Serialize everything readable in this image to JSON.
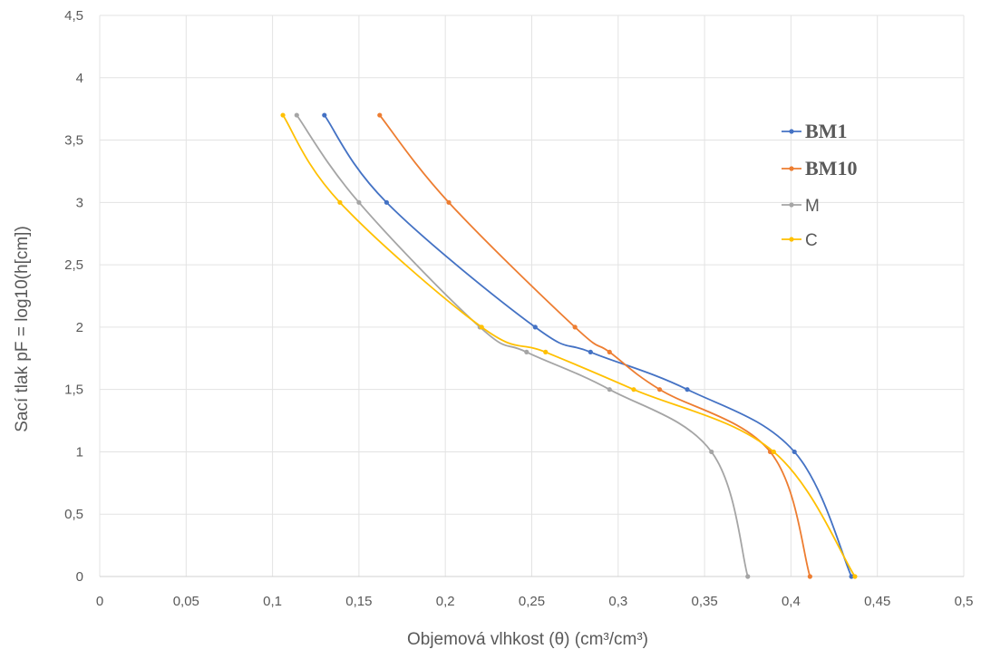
{
  "chart_data": {
    "type": "line",
    "title": "",
    "xlabel": "Objemová vlhkost (θ) (cm³/cm³)",
    "ylabel": "Sací tlak pF = log10(h[cm])",
    "xlim": [
      0,
      0.5
    ],
    "ylim": [
      0,
      4.5
    ],
    "x_ticks": [
      0,
      0.05,
      0.1,
      0.15,
      0.2,
      0.25,
      0.3,
      0.35,
      0.4,
      0.45,
      0.5
    ],
    "x_tick_labels": [
      "0",
      "0,05",
      "0,1",
      "0,15",
      "0,2",
      "0,25",
      "0,3",
      "0,35",
      "0,4",
      "0,45",
      "0,5"
    ],
    "y_ticks": [
      0,
      0.5,
      1,
      1.5,
      2,
      2.5,
      3,
      3.5,
      4,
      4.5
    ],
    "y_tick_labels": [
      "0",
      "0,5",
      "1",
      "1,5",
      "2",
      "2,5",
      "3",
      "3,5",
      "4",
      "4,5"
    ],
    "grid": true,
    "legend_position": "right",
    "series": [
      {
        "name": "BM1",
        "color": "#4472c4",
        "x": [
          0.13,
          0.166,
          0.252,
          0.284,
          0.34,
          0.402,
          0.435
        ],
        "y": [
          3.7,
          3.0,
          2.0,
          1.8,
          1.5,
          1.0,
          0.0
        ]
      },
      {
        "name": "BM10",
        "color": "#ed7d31",
        "x": [
          0.162,
          0.202,
          0.275,
          0.295,
          0.324,
          0.388,
          0.411
        ],
        "y": [
          3.7,
          3.0,
          2.0,
          1.8,
          1.5,
          1.0,
          0.0
        ]
      },
      {
        "name": "M",
        "color": "#a5a5a5",
        "x": [
          0.114,
          0.15,
          0.22,
          0.247,
          0.295,
          0.354,
          0.375
        ],
        "y": [
          3.7,
          3.0,
          2.0,
          1.8,
          1.5,
          1.0,
          0.0
        ]
      },
      {
        "name": "C",
        "color": "#ffc000",
        "x": [
          0.106,
          0.139,
          0.221,
          0.258,
          0.309,
          0.39,
          0.437
        ],
        "y": [
          3.7,
          3.0,
          2.0,
          1.8,
          1.5,
          1.0,
          0.0
        ]
      }
    ]
  }
}
